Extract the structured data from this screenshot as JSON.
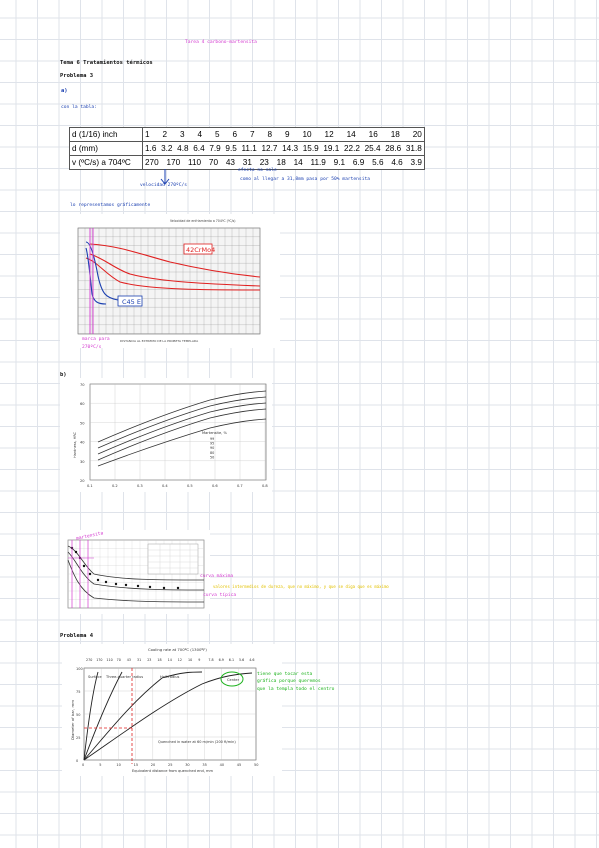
{
  "header": {
    "top_note": "Tarea 4 carbono-martensita",
    "topic": "Tema 6 Tratamientos térmicos",
    "problem3": "Problema 3",
    "part_a": "a)",
    "table_intro": "con la tabla:",
    "graph_intro": "lo representamos gráficamente",
    "part_b": "b)",
    "problem4": "Problema 4"
  },
  "table": {
    "row1_label": "d (1/16) inch",
    "row1": [
      "1",
      "2",
      "3",
      "4",
      "5",
      "6",
      "7",
      "8",
      "9",
      "10",
      "12",
      "14",
      "16",
      "18",
      "20"
    ],
    "row2_label": "d (mm)",
    "row2": [
      "1.6",
      "3.2",
      "4.8",
      "6.4",
      "7.9",
      "9.5",
      "11.1",
      "12.7",
      "14.3",
      "15.9",
      "19.1",
      "22.2",
      "25.4",
      "28.6",
      "31.8"
    ],
    "row3_label": "v (ºC/s) a 704ºC",
    "row3": [
      "270",
      "170",
      "110",
      "70",
      "43",
      "31",
      "23",
      "18",
      "14",
      "11.9",
      "9.1",
      "6.9",
      "5.6",
      "4.6",
      "3.9"
    ]
  },
  "notes": {
    "velocidad": "velocidad 270ºC/s",
    "efecto": "efecto no sale",
    "temple": "como al llegar a 31,8mm pasa por 50% martensita",
    "mark_label": "marca para 270ºC/s",
    "curva_maxima": "curva máxima",
    "curva_tipica": "curva típica",
    "yellow_note": "valores intermedios de dureza, que no máximo, y que se diga que es máximo",
    "marks_c": "martensita",
    "green_note_1": "tiene que tocar esta",
    "green_note_2": "gráfica porque queremos",
    "green_note_3": "que la templa todo el centro"
  },
  "fig1": {
    "label_42": "42CrMo4",
    "label_c45": "C45 E",
    "xcaption": "DISTANCIA AL EXTREMO DE LA PROBETA TEMPLADA",
    "top_caption": "Velocidad de enfriamiento a 704ºC (ºC/s)"
  },
  "fig2": {
    "ylabel": "Hardness, HRC",
    "legend_title": "Martensite, %",
    "legend": [
      "99",
      "95",
      "90",
      "80",
      "50"
    ],
    "xticks": [
      "0.1",
      "0.2",
      "0.3",
      "0.4",
      "0.5",
      "0.6",
      "0.7",
      "0.8"
    ],
    "yticks": [
      "70",
      "60",
      "50",
      "40",
      "30",
      "20"
    ]
  },
  "fig3": {
    "top_caption": "Cooling rate at 700ºC (1300ºF)",
    "top_ticks": [
      "270",
      "170",
      "110",
      "70",
      "43",
      "31",
      "23",
      "18",
      "14",
      "12",
      "10",
      "9",
      "7.8",
      "6.9",
      "6.1",
      "5.6",
      "4.6"
    ],
    "ylabel": "Diameter of bar, mm",
    "labels": [
      "Surface",
      "Three-quarter radius",
      "Half-radius",
      "Center"
    ],
    "quench": "Quenched in water at 60 m/min (200 ft/min)",
    "xlabel": "Equivalent distance from quenched end, mm",
    "xticks": [
      "0",
      "5",
      "10",
      "15",
      "20",
      "25",
      "30",
      "35",
      "40",
      "45",
      "50"
    ],
    "yticks": [
      "100",
      "75",
      "50",
      "25",
      "0"
    ]
  }
}
